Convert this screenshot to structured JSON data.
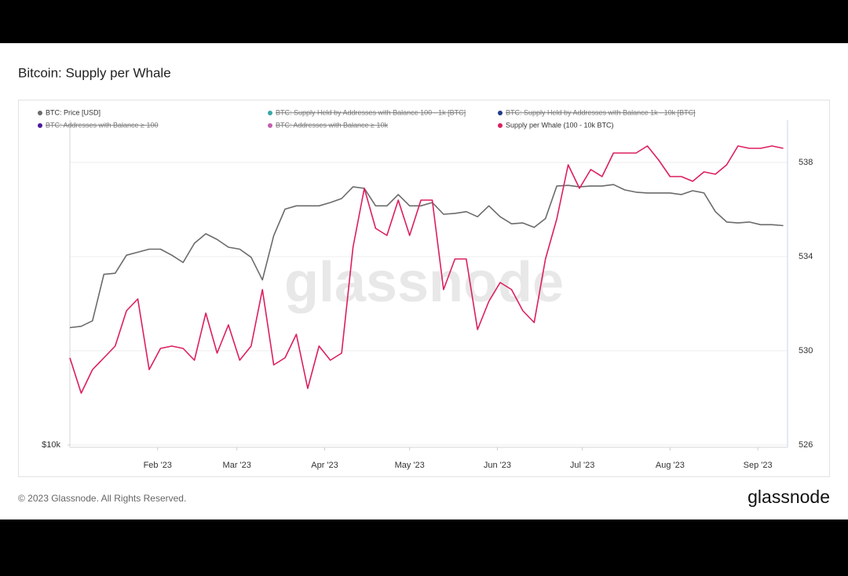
{
  "chart_data": {
    "type": "line",
    "title": "Bitcoin: Supply per Whale",
    "watermark": "glassnode",
    "footer": "© 2023 Glassnode. All Rights Reserved.",
    "logo": "glassnode",
    "x": [
      0,
      4,
      8,
      12,
      16,
      20,
      24,
      28,
      32,
      36,
      40,
      44,
      48,
      52,
      56,
      60,
      64,
      68,
      72,
      76,
      80,
      84,
      88,
      92,
      96,
      100,
      104,
      108,
      112,
      116,
      120,
      124,
      128,
      132,
      136,
      140,
      144,
      148,
      152,
      156,
      160,
      164,
      168,
      172,
      176,
      180,
      184,
      188,
      192,
      196,
      200,
      204,
      208,
      212,
      216,
      220,
      224,
      228,
      232,
      236,
      240,
      244,
      248,
      252
    ],
    "xlim": [
      0,
      253.5
    ],
    "xticks": [
      {
        "value": 31,
        "label": "Feb '23"
      },
      {
        "value": 59,
        "label": "Mar '23"
      },
      {
        "value": 90,
        "label": "Apr '23"
      },
      {
        "value": 120,
        "label": "May '23"
      },
      {
        "value": 151,
        "label": "Jun '23"
      },
      {
        "value": 181,
        "label": "Jul '23"
      },
      {
        "value": 212,
        "label": "Aug '23"
      },
      {
        "value": 243,
        "label": "Sep '23"
      }
    ],
    "ylim": [
      9900,
      40700
    ],
    "log_scale": true,
    "yticks": [
      {
        "value": 10000,
        "label": "$10k"
      }
    ],
    "y2lim": [
      525.9,
      539.8
    ],
    "y2ticks": [
      526,
      530,
      534,
      538
    ],
    "grid": true,
    "legend": "top",
    "series": [
      {
        "name": "BTC: Price [USD]",
        "color": "#6b6b6b",
        "axis": "y",
        "values": [
          16600,
          16700,
          17100,
          20900,
          21000,
          22700,
          23000,
          23300,
          23300,
          22700,
          22000,
          23900,
          24900,
          24300,
          23500,
          23300,
          22500,
          20400,
          24700,
          27700,
          28100,
          28100,
          28100,
          28500,
          29000,
          30500,
          30300,
          28100,
          28100,
          29500,
          28100,
          28100,
          28500,
          27100,
          27200,
          27400,
          26800,
          28100,
          26800,
          26000,
          26100,
          25600,
          26600,
          30600,
          30700,
          30500,
          30600,
          30600,
          30800,
          30100,
          29800,
          29700,
          29700,
          29700,
          29500,
          30000,
          29700,
          27400,
          26200,
          26100,
          26200,
          25900,
          25900,
          25800
        ]
      },
      {
        "name": "BTC: Supply Held by Addresses with Balance 100 - 1k [BTC]",
        "color": "#3aa6a6",
        "hidden": true
      },
      {
        "name": "BTC: Supply Held by Addresses with Balance 1k - 10k [BTC]",
        "color": "#1f3b8c",
        "hidden": true
      },
      {
        "name": "BTC: Addresses with Balance ≥ 100",
        "color": "#4b1a9e",
        "hidden": true
      },
      {
        "name": "BTC: Addresses with Balance ≥ 10k",
        "color": "#c460b0",
        "hidden": true
      },
      {
        "name": "Supply per Whale (100 - 10k BTC)",
        "color": "#dc1f5e",
        "axis": "y2",
        "values": [
          529.7,
          528.2,
          529.2,
          529.7,
          530.2,
          531.7,
          532.2,
          529.2,
          530.1,
          530.2,
          530.1,
          529.6,
          531.6,
          529.9,
          531.1,
          529.6,
          530.2,
          532.6,
          529.4,
          529.7,
          530.7,
          528.4,
          530.2,
          529.6,
          529.9,
          534.4,
          536.9,
          535.2,
          534.9,
          536.4,
          534.9,
          536.4,
          536.4,
          532.6,
          533.9,
          533.9,
          530.9,
          532.1,
          532.9,
          532.6,
          531.7,
          531.2,
          533.9,
          535.6,
          537.9,
          536.9,
          537.7,
          537.4,
          538.4,
          538.4,
          538.4,
          538.7,
          538.1,
          537.4,
          537.4,
          537.2,
          537.6,
          537.5,
          537.9,
          538.7,
          538.6,
          538.6,
          538.7,
          538.6
        ]
      }
    ]
  }
}
